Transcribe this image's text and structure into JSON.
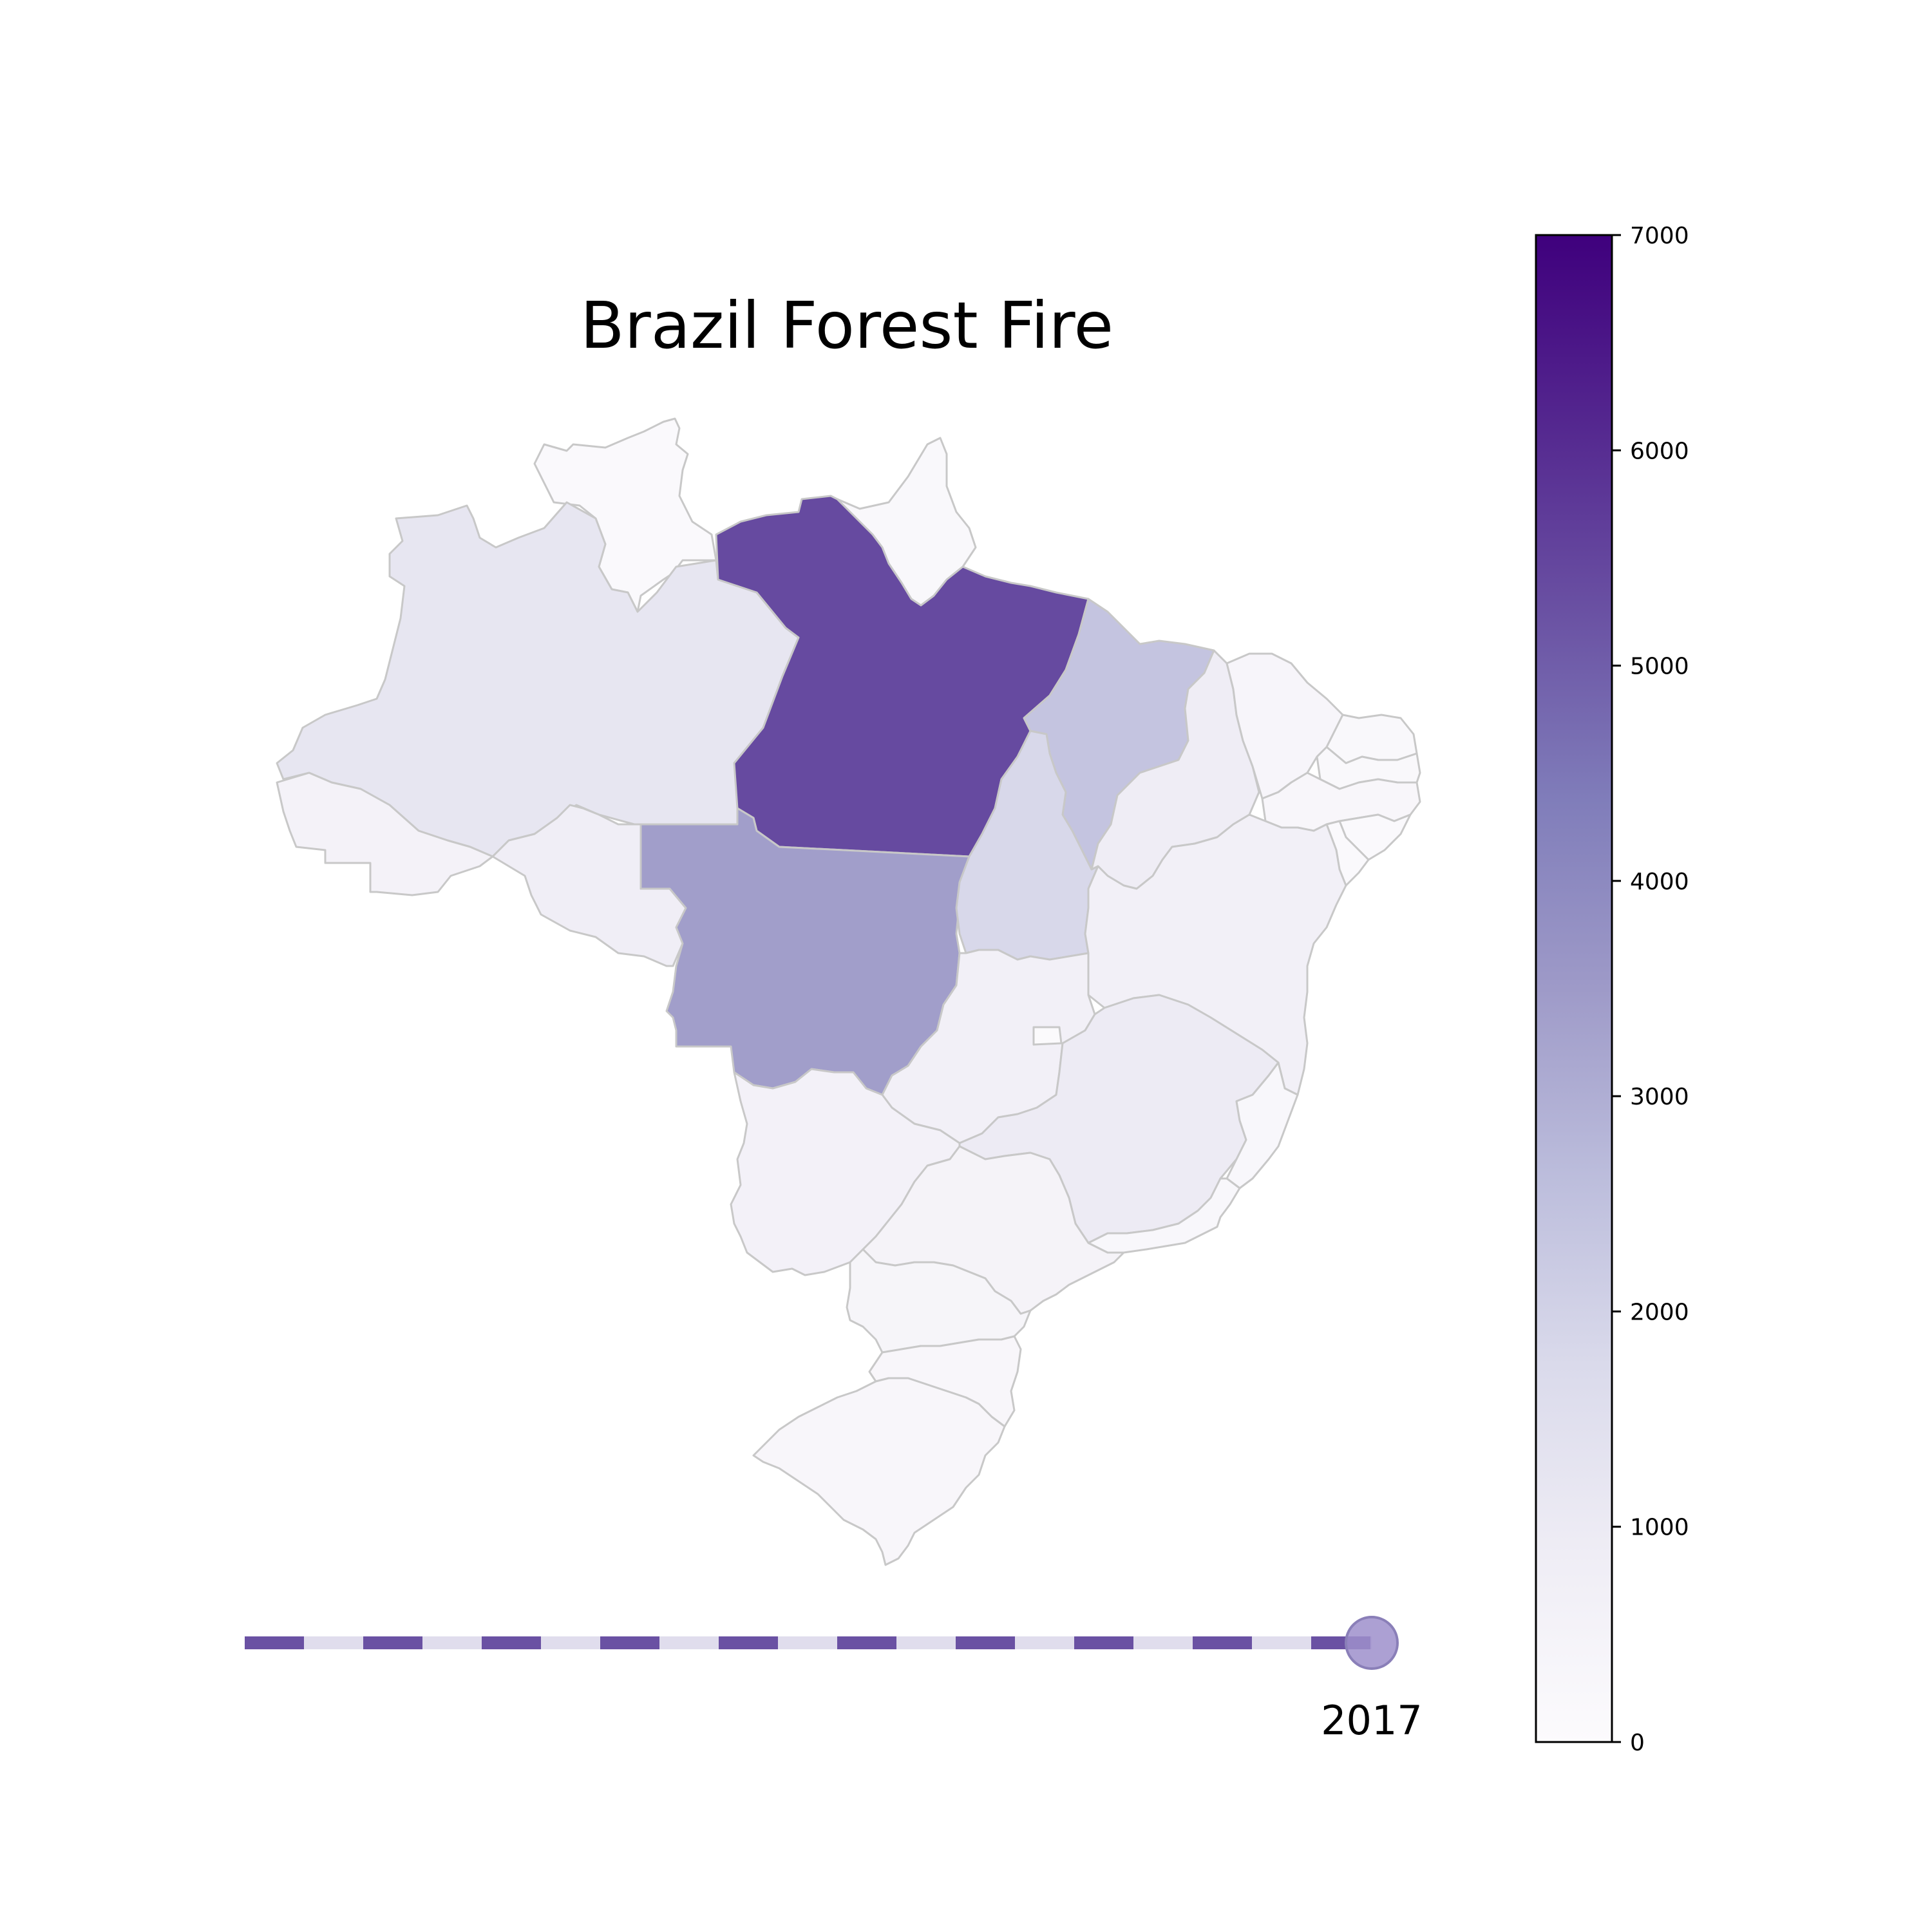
{
  "chart_data": {
    "type": "choropleth",
    "title": "Brazil Forest Fire",
    "year": "2017",
    "colormap": "Purples",
    "colorbar": {
      "min": 0,
      "max": 7000,
      "ticks": [
        0,
        1000,
        2000,
        3000,
        4000,
        5000,
        6000,
        7000
      ]
    },
    "regions": [
      {
        "name": "Roraima",
        "value": 150
      },
      {
        "name": "Amapa",
        "value": 180
      },
      {
        "name": "Amazonas",
        "value": 1200
      },
      {
        "name": "Para",
        "value": 5400
      },
      {
        "name": "Maranhao",
        "value": 2400
      },
      {
        "name": "Acre",
        "value": 550
      },
      {
        "name": "Rondonia",
        "value": 800
      },
      {
        "name": "Mato Grosso",
        "value": 3400
      },
      {
        "name": "Tocantins",
        "value": 1800
      },
      {
        "name": "Piaui",
        "value": 850
      },
      {
        "name": "Ceara",
        "value": 350
      },
      {
        "name": "Rio Grande do Norte",
        "value": 200
      },
      {
        "name": "Paraiba",
        "value": 200
      },
      {
        "name": "Pernambuco",
        "value": 300
      },
      {
        "name": "Alagoas",
        "value": 150
      },
      {
        "name": "Sergipe",
        "value": 120
      },
      {
        "name": "Bahia",
        "value": 700
      },
      {
        "name": "Goias",
        "value": 700
      },
      {
        "name": "Distrito Federal",
        "value": 60
      },
      {
        "name": "Minas Gerais",
        "value": 950
      },
      {
        "name": "Espirito Santo",
        "value": 250
      },
      {
        "name": "Mato Grosso do Sul",
        "value": 600
      },
      {
        "name": "Sao Paulo",
        "value": 500
      },
      {
        "name": "Rio de Janeiro",
        "value": 250
      },
      {
        "name": "Parana",
        "value": 400
      },
      {
        "name": "Santa Catarina",
        "value": 300
      },
      {
        "name": "Rio Grande do Sul",
        "value": 300
      }
    ],
    "timeline": {
      "color_done": "#6a51a3",
      "color_track": "#e0dded",
      "marker_color": "#9e8fcb",
      "progress": 1.0
    }
  }
}
